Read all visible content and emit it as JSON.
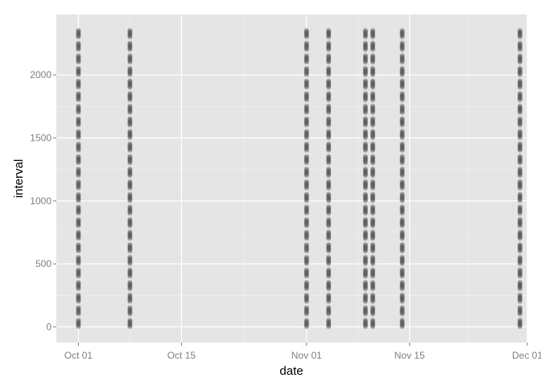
{
  "chart_data": {
    "type": "scatter",
    "title": "",
    "xlabel": "date",
    "ylabel": "interval",
    "x_ticks": [
      {
        "value": "2012-10-01",
        "label": "Oct 01"
      },
      {
        "value": "2012-10-15",
        "label": "Oct 15"
      },
      {
        "value": "2012-11-01",
        "label": "Nov 01"
      },
      {
        "value": "2012-11-15",
        "label": "Nov 15"
      },
      {
        "value": "2012-12-01",
        "label": "Dec 01"
      }
    ],
    "y_ticks": [
      0,
      500,
      1000,
      1500,
      2000
    ],
    "xlim": [
      "2012-09-28",
      "2012-12-01"
    ],
    "ylim": [
      -125,
      2480
    ],
    "grid": true,
    "dates": [
      "2012-10-01",
      "2012-10-08",
      "2012-11-01",
      "2012-11-04",
      "2012-11-09",
      "2012-11-10",
      "2012-11-14",
      "2012-11-30"
    ],
    "intervals": {
      "start": 0,
      "end": 2355,
      "step": 5,
      "within_hour_max": 55
    },
    "colors": {
      "panel": "#e5e5e5",
      "grid_major": "#ffffff",
      "grid_minor": "#f2f2f2",
      "point": "#444444",
      "tick_text": "#7f7f7f"
    }
  }
}
